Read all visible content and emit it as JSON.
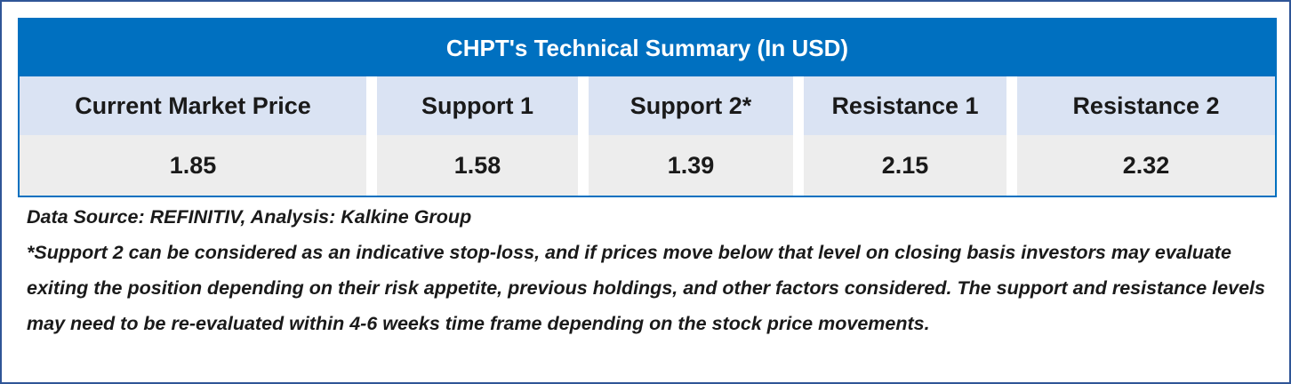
{
  "table": {
    "title": "CHPT's Technical Summary (In USD)",
    "headers": [
      "Current Market Price",
      "Support 1",
      "Support 2*",
      "Resistance 1",
      "Resistance 2"
    ],
    "values": [
      "1.85",
      "1.58",
      "1.39",
      "2.15",
      "2.32"
    ]
  },
  "notes": [
    "Data Source: REFINITIV, Analysis: Kalkine Group",
    "*Support 2 can be considered as an indicative stop-loss, and if prices move below that level on closing basis investors may evaluate exiting the position depending on their risk appetite, previous holdings, and other factors considered. The support and resistance levels may need to be re-evaluated within 4-6 weeks time frame depending on the stock price movements."
  ]
}
